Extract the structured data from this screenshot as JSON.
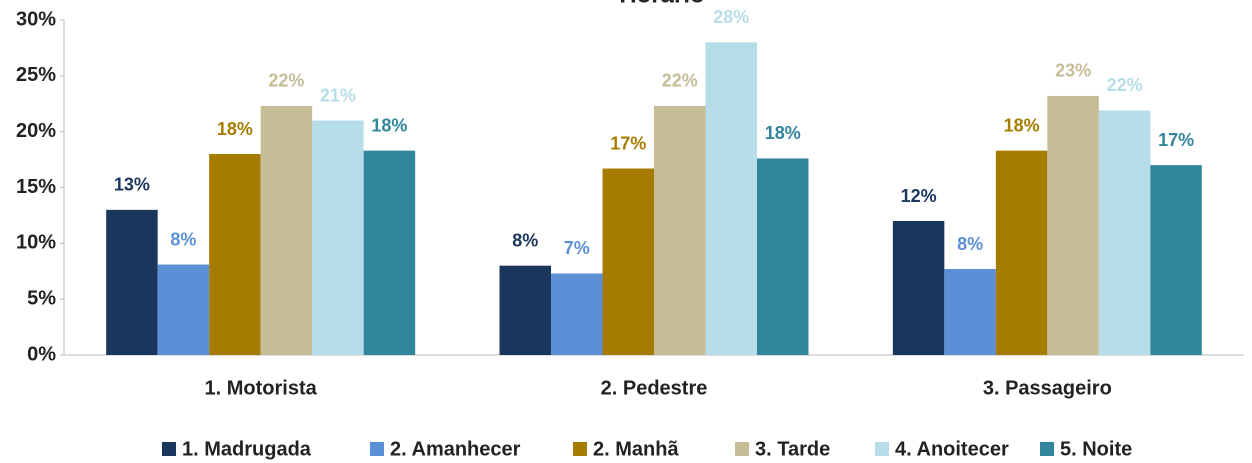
{
  "chart_data": {
    "type": "bar",
    "title": "Horário",
    "categories": [
      "1. Motorista",
      "2. Pedestre",
      "3. Passageiro"
    ],
    "series": [
      {
        "name": "1. Madrugada",
        "color": "#1b365d",
        "values": [
          13.0,
          8.0,
          12.0
        ],
        "value_labels": [
          "13%",
          "8%",
          "12%"
        ]
      },
      {
        "name": "2. Amanhecer",
        "color": "#5b8fd6",
        "values": [
          8.1,
          7.3,
          7.7
        ],
        "value_labels": [
          "8%",
          "7%",
          "8%"
        ]
      },
      {
        "name": "2. Manhã",
        "color": "#a67c00",
        "values": [
          18.0,
          16.7,
          18.3
        ],
        "value_labels": [
          "18%",
          "17%",
          "18%"
        ]
      },
      {
        "name": "3. Tarde",
        "color": "#c6bd97",
        "values": [
          22.3,
          22.3,
          23.2
        ],
        "value_labels": [
          "22%",
          "22%",
          "23%"
        ]
      },
      {
        "name": "4. Anoitecer",
        "color": "#b7dde8",
        "values": [
          21.0,
          28.0,
          21.9
        ],
        "value_labels": [
          "21%",
          "28%",
          "22%"
        ]
      },
      {
        "name": "5. Noite",
        "color": "#31859c",
        "values": [
          18.3,
          17.6,
          17.0
        ],
        "value_labels": [
          "18%",
          "18%",
          "17%"
        ]
      }
    ],
    "ylim": [
      0,
      30
    ],
    "yticks": [
      {
        "value": 0,
        "label": "0%"
      },
      {
        "value": 5,
        "label": "5%"
      },
      {
        "value": 10,
        "label": "10%"
      },
      {
        "value": 15,
        "label": "15%"
      },
      {
        "value": 20,
        "label": "20%"
      },
      {
        "value": 25,
        "label": "25%"
      },
      {
        "value": 30,
        "label": "30%"
      }
    ],
    "legend": "bottom"
  }
}
